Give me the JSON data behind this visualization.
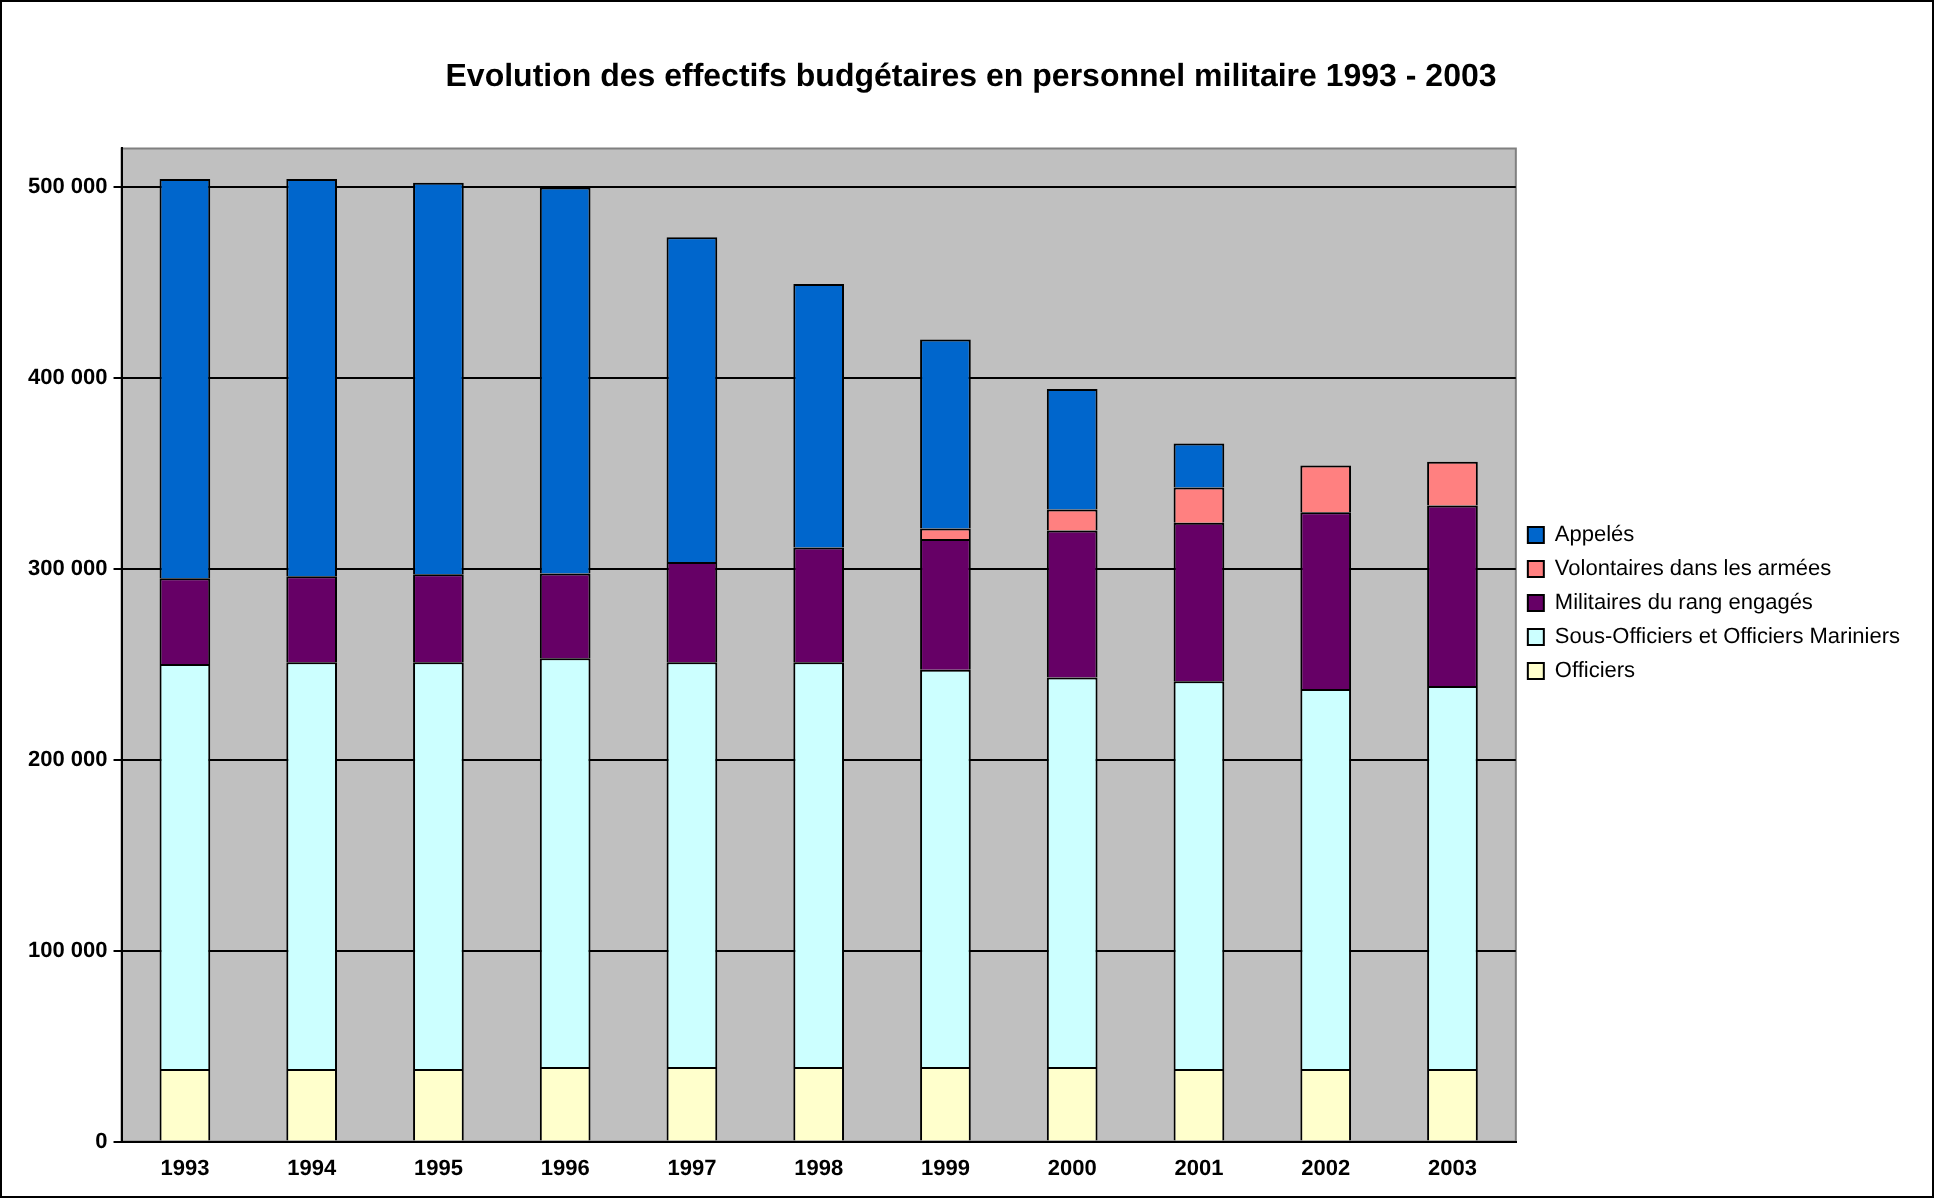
{
  "chart_data": {
    "type": "bar",
    "title": "Evolution des effectifs budgétaires en personnel militaire 1993 - 2003",
    "categories": [
      "1993",
      "1994",
      "1995",
      "1996",
      "1997",
      "1998",
      "1999",
      "2000",
      "2001",
      "2002",
      "2003"
    ],
    "stacked": true,
    "series": [
      {
        "name": "Officiers",
        "color": "#ffffcc",
        "values": [
          38000,
          38000,
          38000,
          39000,
          39000,
          39000,
          39000,
          39000,
          38000,
          38000,
          38000
        ]
      },
      {
        "name": "Sous-Officiers et Officiers Mariniers",
        "color": "#ccffff",
        "values": [
          212000,
          213000,
          213000,
          214000,
          212000,
          212000,
          208000,
          204000,
          203000,
          199000,
          200500
        ]
      },
      {
        "name": "Militaires du rang engagés",
        "color": "#660066",
        "values": [
          45000,
          45000,
          46000,
          44500,
          52500,
          60000,
          68500,
          77000,
          83000,
          92500,
          94500
        ]
      },
      {
        "name": "Volontaires dans les armées",
        "color": "#ff8080",
        "values": [
          0,
          0,
          0,
          0,
          0,
          0,
          5500,
          11000,
          18500,
          24500,
          23000
        ]
      },
      {
        "name": "Appelés",
        "color": "#0066cc",
        "values": [
          209000,
          208000,
          205000,
          202000,
          170000,
          138000,
          99000,
          63000,
          23000,
          0,
          0
        ]
      }
    ],
    "ylim": [
      0,
      520000
    ],
    "yticks": [
      {
        "value": 0,
        "label": "0"
      },
      {
        "value": 100000,
        "label": "100 000"
      },
      {
        "value": 200000,
        "label": "200 000"
      },
      {
        "value": 300000,
        "label": "300 000"
      },
      {
        "value": 400000,
        "label": "400 000"
      },
      {
        "value": 500000,
        "label": "500 000"
      }
    ],
    "grid": "y",
    "legend": "right"
  }
}
